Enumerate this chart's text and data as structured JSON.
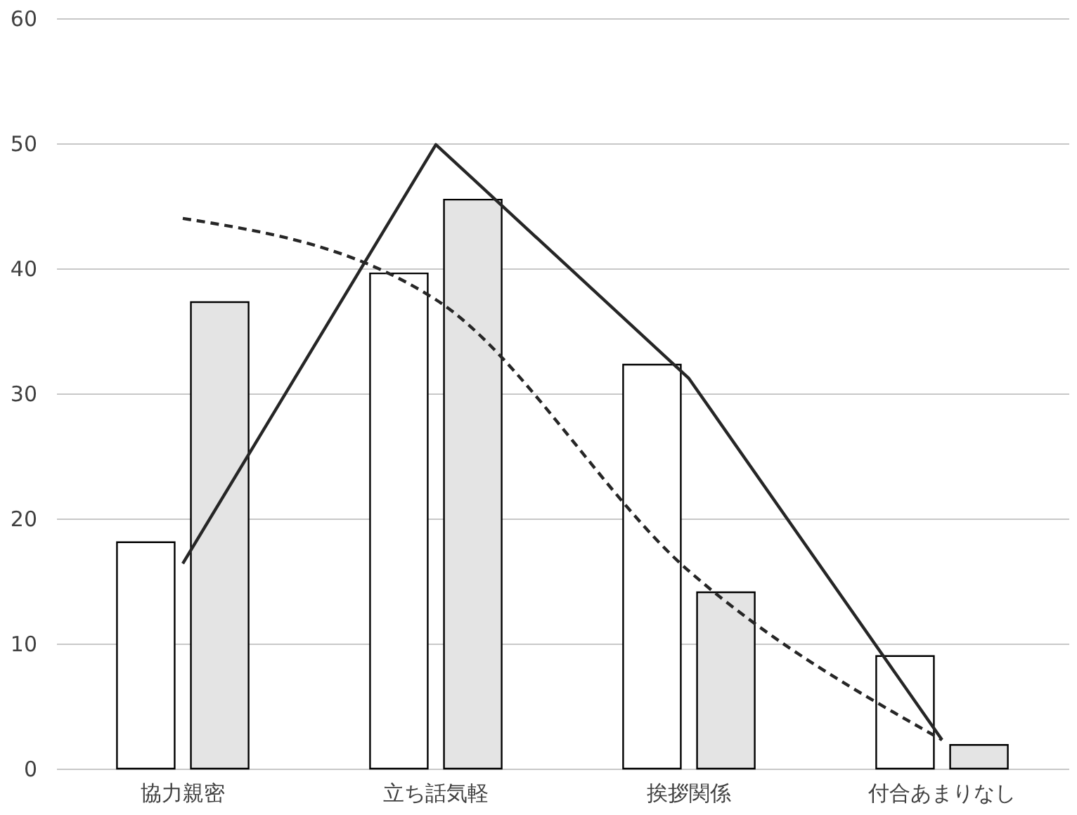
{
  "chart_data": {
    "type": "bar",
    "categories": [
      "協力親密",
      "立ち話気軽",
      "挨拶関係",
      "付合あまりなし"
    ],
    "series": [
      {
        "color": "#ffffff",
        "values": [
          18.1,
          39.6,
          32.3,
          9.0
        ]
      },
      {
        "color": "#e4e4e4",
        "values": [
          37.3,
          45.5,
          14.1,
          1.9
        ]
      },
      {
        "type": "line",
        "color": "#262626",
        "line_style": "solid",
        "values": [
          16.4,
          49.9,
          31.2,
          2.3
        ]
      },
      {
        "type": "line",
        "color": "#262626",
        "line_style": "dashed",
        "values": [
          44.0,
          37.5,
          15.8,
          2.3
        ]
      }
    ],
    "ylim": [
      0,
      60
    ],
    "yticks": [
      0,
      10,
      20,
      30,
      40,
      50,
      60
    ],
    "grid": "y",
    "legend": false
  }
}
